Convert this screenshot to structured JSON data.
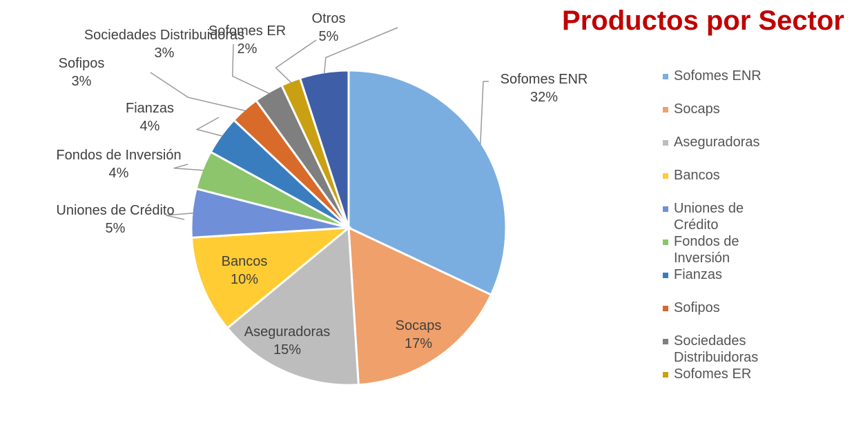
{
  "chart_data": {
    "type": "pie",
    "title": "Productos por Sector",
    "categories": [
      "Sofomes ENR",
      "Socaps",
      "Aseguradoras",
      "Bancos",
      "Uniones de Crédito",
      "Fondos de Inversión",
      "Fianzas",
      "Sofipos",
      "Sociedades Distribuidoras",
      "Sofomes ER",
      "Otros"
    ],
    "values": [
      32,
      17,
      15,
      10,
      5,
      4,
      4,
      3,
      3,
      2,
      5
    ],
    "value_labels": [
      "32%",
      "17%",
      "15%",
      "10%",
      "5%",
      "4%",
      "4%",
      "3%",
      "3%",
      "2%",
      "5%"
    ],
    "colors": [
      "#7aaee0",
      "#f0a06a",
      "#bdbdbd",
      "#ffcc33",
      "#6f8fd8",
      "#8cc56b",
      "#3a7dbf",
      "#d86a2a",
      "#7f7f7f",
      "#c9a012",
      "#3f5ea8"
    ],
    "legend": "right"
  }
}
